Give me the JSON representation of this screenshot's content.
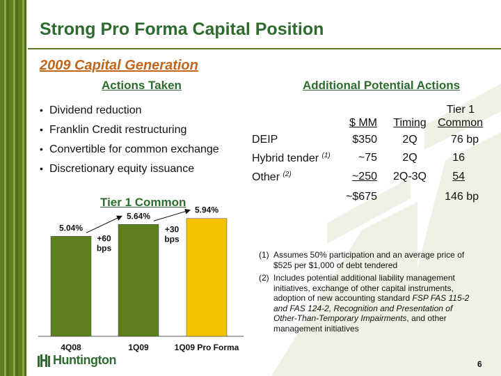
{
  "title": "Strong Pro Forma Capital Position",
  "subtitle": "2009 Capital Generation",
  "actions_taken": {
    "header": "Actions Taken",
    "bullets": [
      "Dividend reduction",
      "Franklin Credit restructuring",
      "Convertible for common exchange",
      "Discretionary equity issuance"
    ]
  },
  "additional_actions": {
    "header": "Additional Potential Actions",
    "columns": {
      "mm": "$ MM",
      "timing": "Timing",
      "tier1_line1": "Tier 1",
      "tier1_line2": "Common"
    },
    "rows": [
      {
        "label": "DEIP",
        "note": "",
        "mm": "$350",
        "timing": "2Q",
        "tier1": "76 bp"
      },
      {
        "label": "Hybrid tender",
        "note": "(1)",
        "mm": "~75",
        "timing": "2Q",
        "tier1": "16"
      },
      {
        "label": "Other",
        "note": "(2)",
        "mm": "~250",
        "timing": "2Q-3Q",
        "tier1": "54"
      }
    ],
    "total": {
      "mm": "~$675",
      "tier1": "146 bp"
    }
  },
  "chart_title": "Tier 1 Common",
  "chart_data": {
    "type": "bar",
    "categories": [
      "4Q08",
      "1Q09",
      "1Q09 Pro Forma"
    ],
    "values": [
      5.04,
      5.64,
      5.94
    ],
    "value_labels": [
      "5.04%",
      "5.64%",
      "5.94%"
    ],
    "colors": [
      "#5d7f1e",
      "#5d7f1e",
      "#f5c200"
    ],
    "annotations": [
      {
        "from": 0,
        "to": 1,
        "text_line1": "+60",
        "text_line2": "bps"
      },
      {
        "from": 1,
        "to": 2,
        "text_line1": "+30",
        "text_line2": "bps"
      }
    ]
  },
  "footnotes": [
    {
      "num": "(1)",
      "text": "Assumes 50% participation and an average price of $525 per $1,000 of debt tendered"
    },
    {
      "num": "(2)",
      "parts": [
        {
          "text": "Includes potential additional liability management initiatives, exchange of other capital instruments, adoption of new accounting standard ",
          "italic": false
        },
        {
          "text": "FSP FAS 115-2 and FAS 124-2, Recognition and Presentation of Other-Than-Temporary Impairments",
          "italic": true
        },
        {
          "text": ", and other management initiatives",
          "italic": false
        }
      ]
    }
  ],
  "logo": {
    "text": "Huntington",
    "icon": "huntington-building-icon"
  },
  "page_number": "6"
}
